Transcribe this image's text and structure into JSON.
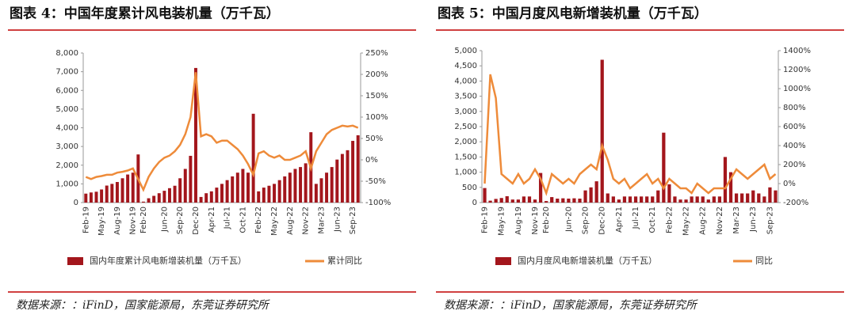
{
  "chart_data": [
    {
      "type": "bar_line",
      "title": "图表 4：中国年度累计风电装机量（万千瓦）",
      "source": "数据来源：：iFinD，国家能源局，东莞证券研究所",
      "categories": [
        "Feb-19",
        null,
        null,
        "May-19",
        null,
        null,
        "Aug-19",
        null,
        null,
        "Nov-19",
        null,
        "Feb-20",
        null,
        null,
        null,
        "Jun-20",
        null,
        null,
        "Sep-20",
        null,
        null,
        "Dec-20",
        null,
        null,
        "Apr-21",
        null,
        null,
        "Jul-21",
        null,
        null,
        "Oct-21",
        null,
        null,
        "Feb-22",
        null,
        null,
        "May-22",
        null,
        null,
        "Aug-22",
        null,
        null,
        "Nov-22",
        null,
        null,
        "Mar-23",
        null,
        null,
        "Jun-23",
        null,
        null,
        "Sep-23",
        null
      ],
      "series": [
        {
          "name": "国内年度累计风电新增装机量（万千瓦）",
          "color": "#a3161c",
          "values": [
            478,
            540,
            580,
            700,
            909,
            1000,
            1100,
            1300,
            1500,
            1600,
            2574,
            50,
            230,
            360,
            500,
            630,
            770,
            900,
            1300,
            1800,
            2500,
            7200,
            300,
            500,
            600,
            800,
            1000,
            1200,
            1400,
            1600,
            1800,
            1600,
            4750,
            600,
            800,
            900,
            1000,
            1200,
            1400,
            1600,
            1800,
            1900,
            2100,
            3763,
            1000,
            1300,
            1600,
            1900,
            2300,
            2600,
            2800,
            3300,
            3600
          ]
        },
        {
          "name": "累计同比",
          "color": "#ee8b3a",
          "axis": "y2",
          "values": [
            -40,
            -45,
            -40,
            -38,
            -35,
            -35,
            -30,
            -28,
            -25,
            -20,
            -45,
            -70,
            -40,
            -20,
            -5,
            5,
            10,
            20,
            35,
            60,
            100,
            205,
            55,
            60,
            55,
            40,
            45,
            45,
            35,
            25,
            10,
            -10,
            -35,
            15,
            20,
            10,
            5,
            10,
            0,
            0,
            5,
            10,
            20,
            -20,
            20,
            40,
            60,
            70,
            75,
            80,
            78,
            80,
            75
          ]
        }
      ],
      "ylim": [
        0,
        8000
      ],
      "yticks": [
        0,
        {
          "value": 1000,
          "label": "1,000"
        },
        {
          "value": 2000,
          "label": "2,000"
        },
        {
          "value": 3000,
          "label": "3,000"
        },
        {
          "value": 4000,
          "label": "4,000"
        },
        {
          "value": 5000,
          "label": "5,000"
        },
        {
          "value": 6000,
          "label": "6,000"
        },
        {
          "value": 7000,
          "label": "7,000"
        },
        {
          "value": 8000,
          "label": "8,000"
        }
      ],
      "y2lim": [
        -100,
        250
      ],
      "y2ticks": [
        {
          "value": -100,
          "label": "-100%"
        },
        {
          "value": -50,
          "label": "-50%"
        },
        {
          "value": 0,
          "label": "0%"
        },
        {
          "value": 50,
          "label": "50%"
        },
        {
          "value": 100,
          "label": "100%"
        },
        {
          "value": 150,
          "label": "150%"
        },
        {
          "value": 200,
          "label": "200%"
        },
        {
          "value": 250,
          "label": "250%"
        }
      ],
      "legend": "bottom"
    },
    {
      "type": "bar_line",
      "title": "图表 5：中国月度风电新增装机量（万千瓦）",
      "source": "数据来源：：iFinD，国家能源局，东莞证券研究所",
      "categories": [
        "Feb-19",
        null,
        null,
        "May-19",
        null,
        null,
        "Aug-19",
        null,
        null,
        "Nov-19",
        null,
        "Feb-20",
        null,
        null,
        null,
        "Jun-20",
        null,
        null,
        "Sep-20",
        null,
        null,
        "Dec-20",
        null,
        null,
        "Apr-21",
        null,
        null,
        "Jul-21",
        null,
        null,
        "Oct-21",
        null,
        null,
        "Feb-22",
        null,
        null,
        "May-22",
        null,
        null,
        "Aug-22",
        null,
        null,
        "Nov-22",
        null,
        null,
        "Mar-23",
        null,
        null,
        "Jun-23",
        null,
        null,
        "Sep-23",
        null
      ],
      "series": [
        {
          "name": "国内月度风电新增装机量（万千瓦）",
          "color": "#a3161c",
          "values": [
            478,
            62,
            120,
            150,
            209,
            100,
            100,
            200,
            200,
            100,
            974,
            50,
            180,
            130,
            140,
            130,
            140,
            130,
            400,
            500,
            700,
            4700,
            300,
            200,
            100,
            200,
            200,
            200,
            200,
            200,
            200,
            400,
            2300,
            600,
            200,
            100,
            100,
            200,
            200,
            200,
            100,
            200,
            200,
            1500,
            1000,
            300,
            300,
            300,
            400,
            300,
            200,
            500,
            400
          ]
        },
        {
          "name": "同比",
          "color": "#ee8b3a",
          "axis": "y2",
          "values": [
            0,
            1150,
            900,
            100,
            50,
            0,
            100,
            0,
            50,
            150,
            50,
            -100,
            100,
            50,
            0,
            50,
            0,
            100,
            150,
            200,
            150,
            400,
            250,
            50,
            0,
            50,
            -50,
            0,
            50,
            100,
            0,
            50,
            -50,
            50,
            0,
            -50,
            -50,
            -100,
            0,
            -50,
            -100,
            -50,
            -50,
            -50,
            50,
            150,
            100,
            50,
            100,
            150,
            200,
            50,
            100
          ]
        }
      ],
      "ylim": [
        0,
        5000
      ],
      "yticks": [
        0,
        500,
        {
          "value": 1000,
          "label": "1,000"
        },
        {
          "value": 1500,
          "label": "1,500"
        },
        {
          "value": 2000,
          "label": "2,000"
        },
        {
          "value": 2500,
          "label": "2,500"
        },
        {
          "value": 3000,
          "label": "3,000"
        },
        {
          "value": 3500,
          "label": "3,500"
        },
        {
          "value": 4000,
          "label": "4,000"
        },
        {
          "value": 4500,
          "label": "4,500"
        },
        {
          "value": 5000,
          "label": "5,000"
        }
      ],
      "y2lim": [
        -200,
        1400
      ],
      "y2ticks": [
        {
          "value": -200,
          "label": "-200%"
        },
        {
          "value": 0,
          "label": "0%"
        },
        {
          "value": 200,
          "label": "200%"
        },
        {
          "value": 400,
          "label": "400%"
        },
        {
          "value": 600,
          "label": "600%"
        },
        {
          "value": 800,
          "label": "800%"
        },
        {
          "value": 1000,
          "label": "1000%"
        },
        {
          "value": 1200,
          "label": "1200%"
        },
        {
          "value": 1400,
          "label": "1400%"
        }
      ],
      "legend": "bottom"
    }
  ]
}
